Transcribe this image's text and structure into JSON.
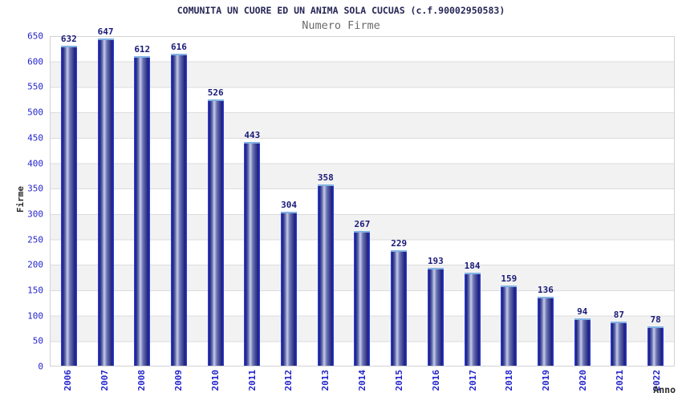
{
  "chart_data": {
    "type": "bar",
    "title": "COMUNITA UN CUORE ED UN ANIMA SOLA CUCUAS (c.f.90002950583)",
    "subtitle": "Numero Firme",
    "xlabel": "Anno",
    "ylabel": "Firme",
    "categories": [
      "2006",
      "2007",
      "2008",
      "2009",
      "2010",
      "2011",
      "2012",
      "2013",
      "2014",
      "2015",
      "2016",
      "2017",
      "2018",
      "2019",
      "2020",
      "2021",
      "2022"
    ],
    "values": [
      632,
      647,
      612,
      616,
      526,
      443,
      304,
      358,
      267,
      229,
      193,
      184,
      159,
      136,
      94,
      87,
      78
    ],
    "ylim": [
      0,
      650
    ],
    "ytick_step": 50,
    "yticks": [
      0,
      50,
      100,
      150,
      200,
      250,
      300,
      350,
      400,
      450,
      500,
      550,
      600,
      650
    ],
    "grid": "horizontal-bands-alternating",
    "legend": "none",
    "colors": {
      "bar_edge": "#2a3cd0",
      "bar_dark": "#1a1a78",
      "bar_light": "#c7cde8",
      "bar_cap": "#82b2e4",
      "tick_label": "#2424cc",
      "value_label": "#1a1a78",
      "title": "#262656",
      "subtitle": "#6b6b6b",
      "axis_title": "#2b2b2b",
      "band_gray": "#f2f2f2",
      "gridline": "#dcdcdc"
    }
  }
}
